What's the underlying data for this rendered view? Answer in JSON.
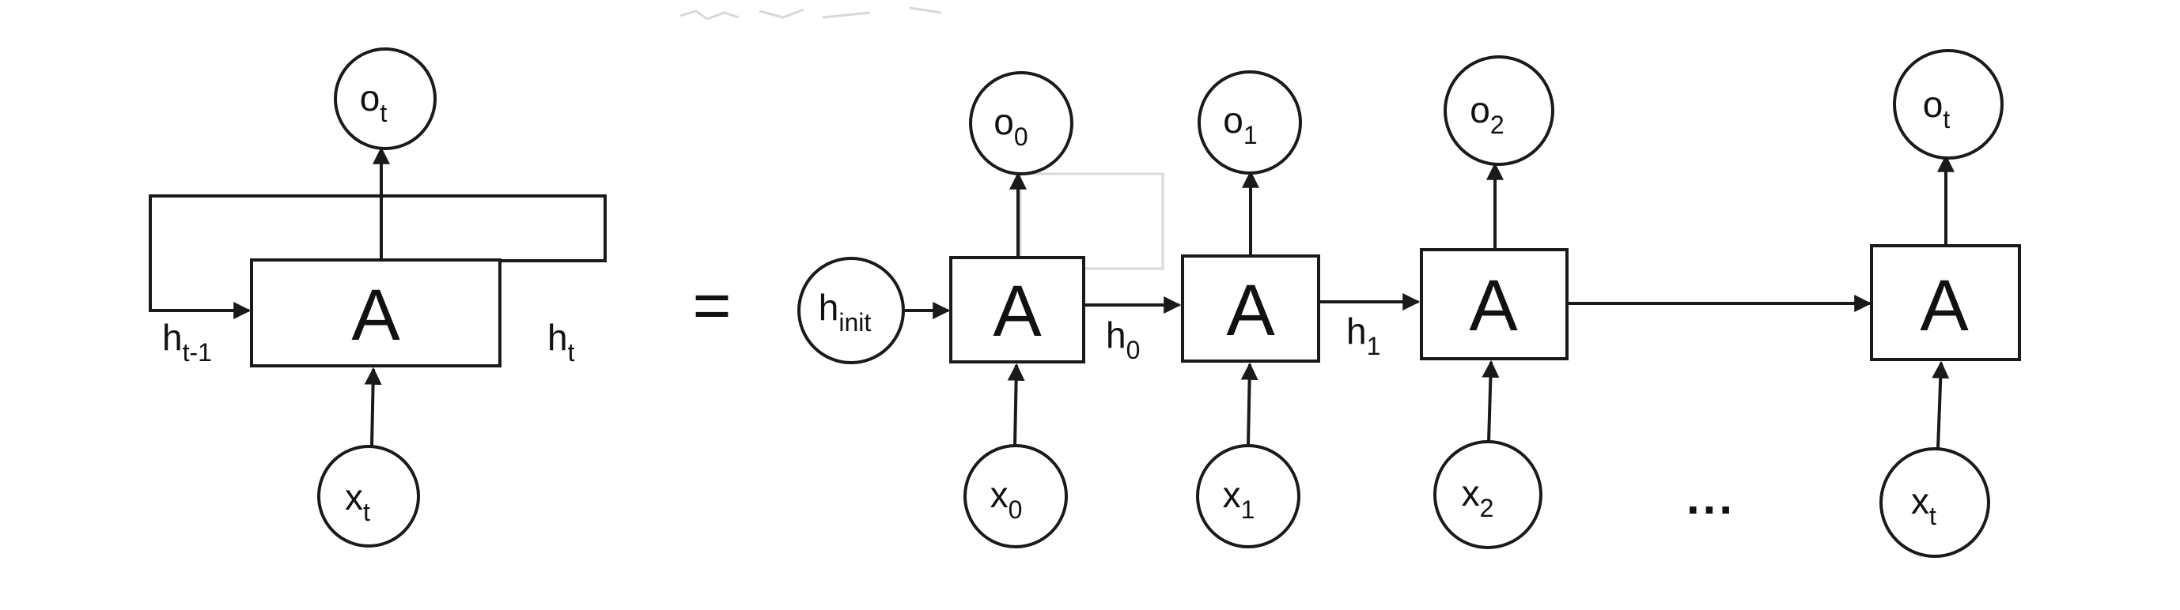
{
  "diagram": {
    "equals_sign": "=",
    "ellipsis": "...",
    "folded": {
      "cell": "A",
      "output": {
        "main": "o",
        "sub": "t"
      },
      "input": {
        "main": "x",
        "sub": "t"
      },
      "hidden_in": {
        "main": "h",
        "sub": "t-1"
      },
      "hidden_out": {
        "main": "h",
        "sub": "t"
      }
    },
    "unrolled": {
      "initial_state": {
        "main": "h",
        "sub": "init"
      },
      "cells": [
        {
          "cell": "A",
          "output": {
            "main": "o",
            "sub": "0"
          },
          "input": {
            "main": "x",
            "sub": "0"
          },
          "hidden_out": {
            "main": "h",
            "sub": "0"
          }
        },
        {
          "cell": "A",
          "output": {
            "main": "o",
            "sub": "1"
          },
          "input": {
            "main": "x",
            "sub": "1"
          },
          "hidden_out": {
            "main": "h",
            "sub": "1"
          }
        },
        {
          "cell": "A",
          "output": {
            "main": "o",
            "sub": "2"
          },
          "input": {
            "main": "x",
            "sub": "2"
          },
          "hidden_out": {
            "main": "",
            "sub": ""
          }
        },
        {
          "cell": "A",
          "output": {
            "main": "o",
            "sub": "t"
          },
          "input": {
            "main": "x",
            "sub": "t"
          },
          "hidden_out": {
            "main": "",
            "sub": ""
          }
        }
      ]
    }
  }
}
